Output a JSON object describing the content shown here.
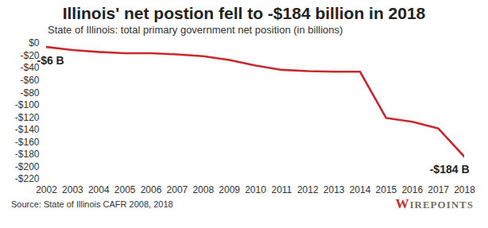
{
  "chart_data": {
    "type": "line",
    "title": "Illinois' net postion fell to -$184 billion in 2018",
    "subtitle": "State of Illinois: total primary government net position (in billions)",
    "x": [
      2002,
      2003,
      2004,
      2005,
      2006,
      2007,
      2008,
      2009,
      2010,
      2011,
      2012,
      2013,
      2014,
      2015,
      2016,
      2017,
      2018
    ],
    "values": [
      -6,
      -11,
      -14,
      -16,
      -16,
      -18,
      -21,
      -27,
      -36,
      -43,
      -45,
      -46,
      -46,
      -121,
      -127,
      -138,
      -184
    ],
    "color": "#c8282e",
    "xlim": [
      2002,
      2018
    ],
    "xticks": [
      2002,
      2003,
      2004,
      2005,
      2006,
      2007,
      2008,
      2009,
      2010,
      2011,
      2012,
      2013,
      2014,
      2015,
      2016,
      2017,
      2018
    ],
    "ylim": [
      -220,
      0
    ],
    "yticks": [
      {
        "value": 0,
        "label": "$0"
      },
      {
        "value": -20,
        "label": "-$20"
      },
      {
        "value": -40,
        "label": "-$40"
      },
      {
        "value": -60,
        "label": "-$60"
      },
      {
        "value": -80,
        "label": "-$80"
      },
      {
        "value": -100,
        "label": "-$100"
      },
      {
        "value": -120,
        "label": "-$120"
      },
      {
        "value": -140,
        "label": "-$140"
      },
      {
        "value": -160,
        "label": "-$160"
      },
      {
        "value": -180,
        "label": "-$180"
      },
      {
        "value": -200,
        "label": "-$200"
      },
      {
        "value": -220,
        "label": "-$220"
      }
    ],
    "grid": false,
    "annotations": [
      {
        "text": "-$6 B",
        "x": 2002,
        "y": -6
      },
      {
        "text": "-$184 B",
        "x": 2018,
        "y": -184
      }
    ],
    "source": "Source: State of Illinois CAFR 2008, 2018",
    "logo": "WIREPOINTS"
  }
}
